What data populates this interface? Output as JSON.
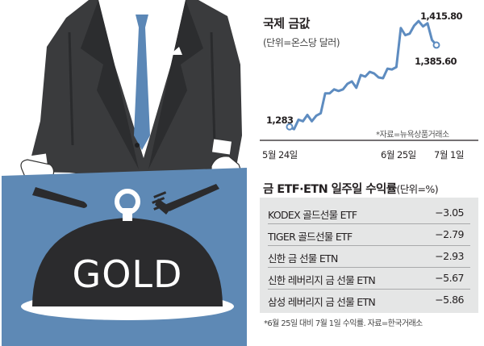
{
  "chart_data": [
    {
      "type": "line",
      "title": "국제 금값",
      "unit": "(단위=온스당 달러)",
      "source": "*자료=뉴욕상품거래소",
      "x_tick_labels": [
        "5월 24일",
        "6월 25일",
        "7월 1일"
      ],
      "series": [
        {
          "values": [
            1283,
            1280,
            1292,
            1290,
            1298,
            1290,
            1297,
            1300,
            1325,
            1325,
            1330,
            1328,
            1330,
            1337,
            1340,
            1332,
            1348,
            1346,
            1352,
            1350,
            1345,
            1344,
            1356,
            1355,
            1358,
            1407,
            1398,
            1400,
            1410,
            1415.8,
            1409,
            1413,
            1392,
            1385.6
          ]
        }
      ],
      "labels": {
        "start": "1,283",
        "peak": "1,415.80",
        "end": "1,385.60"
      },
      "ylim": [
        1262,
        1428
      ],
      "grid": false
    },
    {
      "type": "table",
      "title": "금 ETF·ETN 일주일 수익률",
      "unit": "(단위=%)",
      "rows": [
        {
          "name": "KODEX 골드선물 ETF",
          "value": "−3.05"
        },
        {
          "name": "TIGER 골드선물 ETF",
          "value": "−2.79"
        },
        {
          "name": "신한 금 선물 ETN",
          "value": "−2.93"
        },
        {
          "name": "신한 레버리지 금 선물 ETN",
          "value": "−5.67"
        },
        {
          "name": "삼성 레버리지 금 선물 ETN",
          "value": "−5.86"
        }
      ],
      "footnote": "*6월 25일 대비 7월 1일 수익률. 자료=한국거래소"
    }
  ],
  "illustration": {
    "dome_text": "GOLD"
  },
  "colors": {
    "suit": "#3a3b3d",
    "shirt": "#ffffff",
    "tie": "#5b87b6",
    "podium": "#5e89b5",
    "dome": "#2b2b2d",
    "line": "#5e8cc0",
    "table_bg": "#e5e6e6"
  }
}
